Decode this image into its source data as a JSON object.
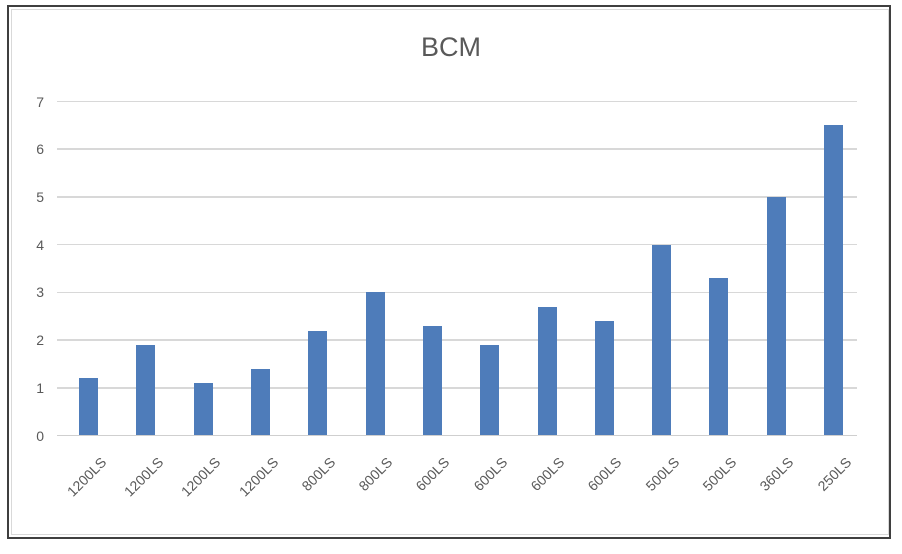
{
  "chart_data": {
    "type": "bar",
    "title": "BCM",
    "categories": [
      "1200LS",
      "1200LS",
      "1200LS",
      "1200LS",
      "800LS",
      "800LS",
      "600LS",
      "600LS",
      "600LS",
      "600LS",
      "500LS",
      "500LS",
      "360LS",
      "250LS"
    ],
    "values": [
      1.2,
      1.9,
      1.1,
      1.4,
      2.2,
      3.0,
      2.3,
      1.9,
      2.7,
      2.4,
      4.0,
      3.3,
      5.0,
      6.5
    ],
    "xlabel": "",
    "ylabel": "",
    "ylim": [
      0,
      7
    ],
    "yticks": [
      0,
      1,
      2,
      3,
      4,
      5,
      6,
      7
    ],
    "grid": true,
    "legend_position": "none",
    "bar_color": "#4e7cba",
    "gridline_color": "#d8d8d8",
    "axis_line_color": "#cfcfcf",
    "text_color": "#595959",
    "frame_border_color": "#3f3f3f",
    "chart_border_color": "#d9d9d9"
  }
}
